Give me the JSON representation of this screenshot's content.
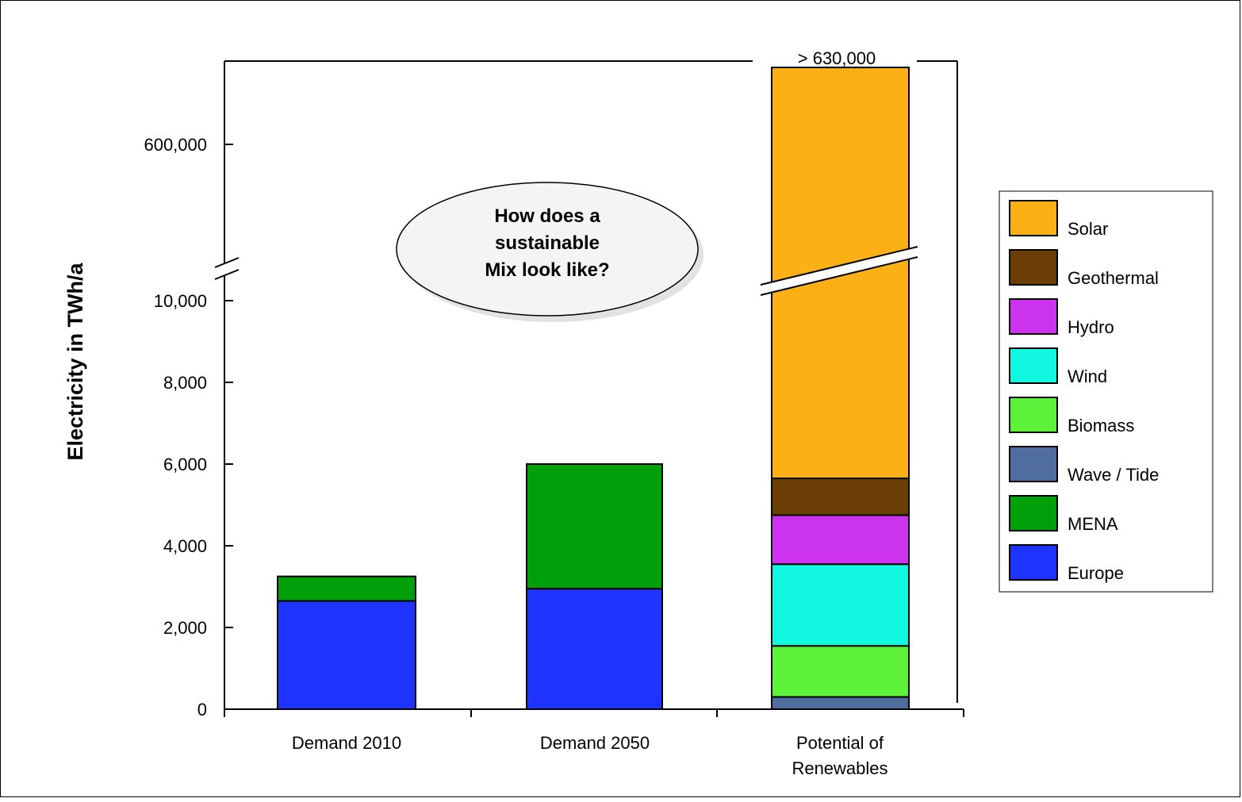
{
  "chart_data": {
    "type": "bar",
    "stacked": true,
    "title": "",
    "xlabel": "",
    "ylabel": "Electricity in TWh/a",
    "ylim": [
      0,
      10000
    ],
    "y_axis_break": {
      "from": 10000,
      "to": 600000
    },
    "y_ticks": [
      "0",
      "2,000",
      "4,000",
      "6,000",
      "8,000",
      "10,000",
      "600,000"
    ],
    "categories": [
      "Demand 2010",
      "Demand 2050",
      "Potential of Renewables"
    ],
    "series": [
      {
        "name": "Europe",
        "color": "#1f33ff",
        "values": [
          2650,
          2950,
          0
        ]
      },
      {
        "name": "MENA",
        "color": "#00a00a",
        "values": [
          600,
          3050,
          0
        ]
      },
      {
        "name": "Wave / Tide",
        "color": "#4f6d9e",
        "values": [
          0,
          0,
          300
        ]
      },
      {
        "name": "Biomass",
        "color": "#5df23a",
        "values": [
          0,
          0,
          1250
        ]
      },
      {
        "name": "Wind",
        "color": "#12f8e0",
        "values": [
          0,
          0,
          2000
        ]
      },
      {
        "name": "Hydro",
        "color": "#cc33ee",
        "values": [
          0,
          0,
          1200
        ]
      },
      {
        "name": "Geothermal",
        "color": "#6b3e05",
        "values": [
          0,
          0,
          900
        ]
      },
      {
        "name": "Solar",
        "color": "#fbb116",
        "values": [
          0,
          0,
          624350
        ]
      }
    ],
    "legend_order": [
      "Solar",
      "Geothermal",
      "Hydro",
      "Wind",
      "Biomass",
      "Wave / Tide",
      "MENA",
      "Europe"
    ],
    "legend_position": "right",
    "top_annotation": "> 630,000",
    "callout_lines": [
      "How does a",
      "sustainable",
      "Mix look like?"
    ],
    "grid": false
  }
}
